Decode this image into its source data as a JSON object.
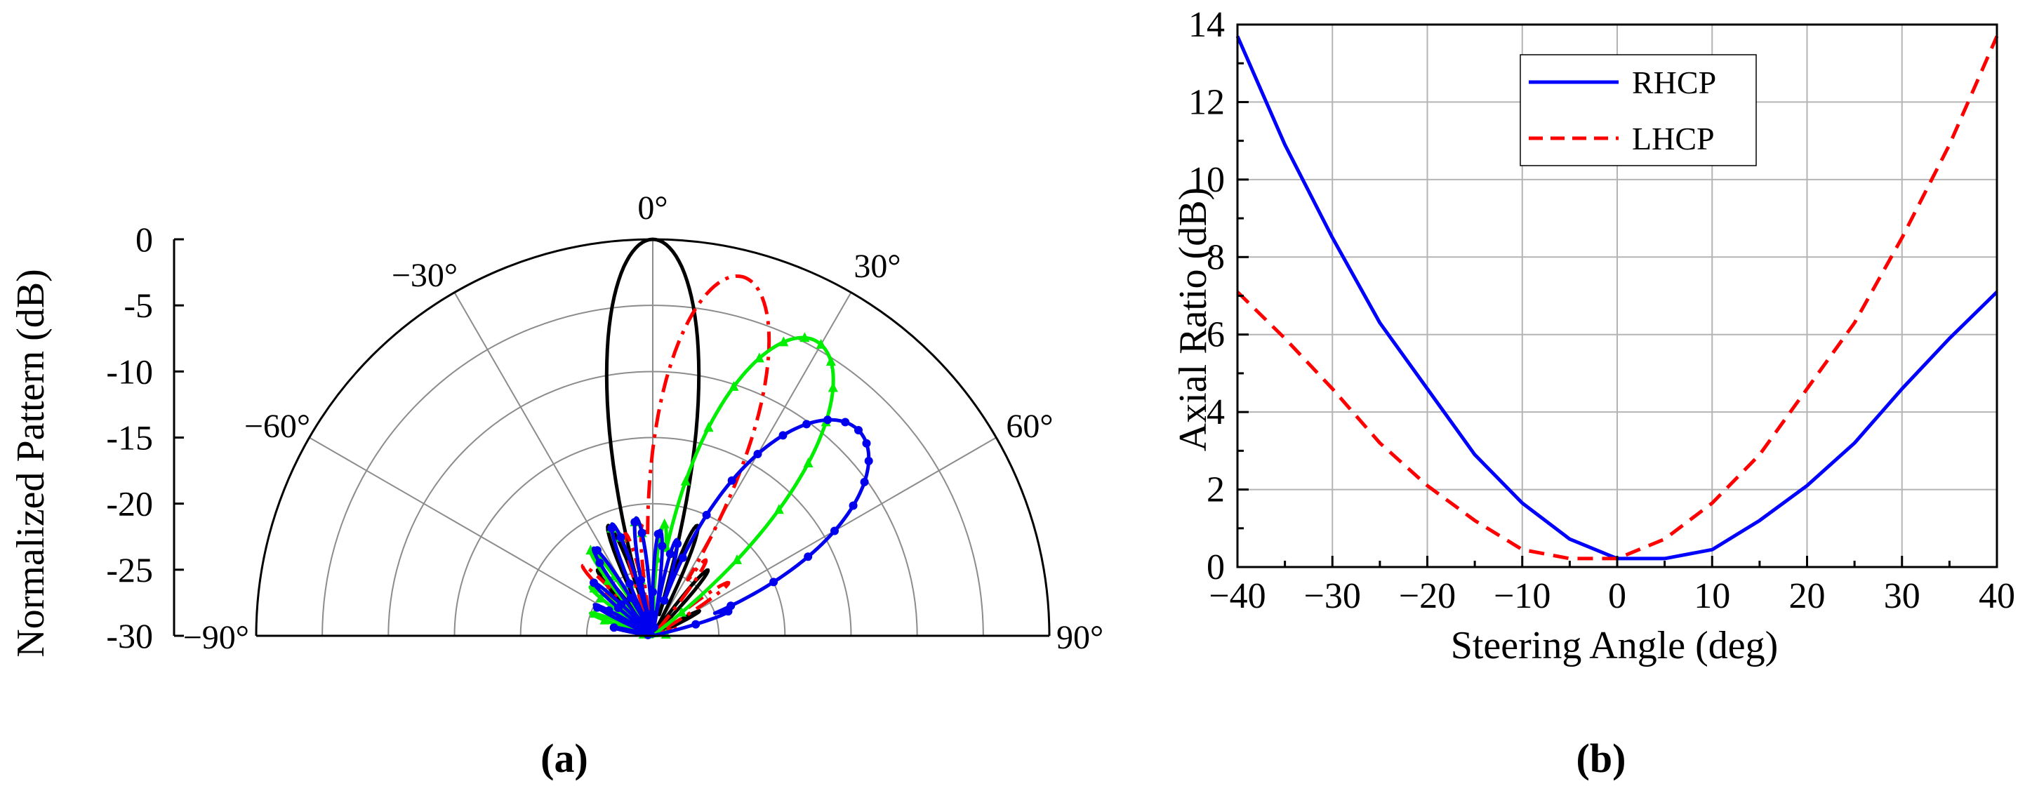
{
  "panels": {
    "a_label": "(a)",
    "b_label": "(b)"
  },
  "chart_data": [
    {
      "type": "polar",
      "ylabel": "Normalized Pattern (dB)",
      "r_ticks": [
        "0",
        "-5",
        "-10",
        "-15",
        "-20",
        "-25",
        "-30"
      ],
      "r_range": [
        -30,
        0
      ],
      "angle_range": [
        -90,
        90
      ],
      "angle_labels": [
        {
          "angle": -90,
          "text": "−90°"
        },
        {
          "angle": -60,
          "text": "−60°"
        },
        {
          "angle": -30,
          "text": "−30°"
        },
        {
          "angle": 0,
          "text": "0°"
        },
        {
          "angle": 30,
          "text": "30°"
        },
        {
          "angle": 60,
          "text": "60°"
        },
        {
          "angle": 90,
          "text": "90°"
        }
      ],
      "grid": true,
      "series": [
        {
          "color": "#000000",
          "style": "solid",
          "marker": "none",
          "main_lobe_deg": 0,
          "beamwidth_deg": 11,
          "peak_db": 0,
          "side_lobes": [
            [
              -78,
              -27
            ],
            [
              -62,
              -27
            ],
            [
              -40,
              -23.5
            ],
            [
              -22,
              -21
            ],
            [
              -10,
              -23.5
            ],
            [
              10,
              -23.5
            ],
            [
              22,
              -21
            ],
            [
              40,
              -23.5
            ],
            [
              62,
              -26
            ]
          ]
        },
        {
          "color": "#ff0000",
          "style": "dashdot",
          "marker": "none",
          "main_lobe_deg": 14,
          "beamwidth_deg": 13,
          "peak_db": -2,
          "side_lobes": [
            [
              -62,
              -25
            ],
            [
              -45,
              -22.5
            ],
            [
              -15,
              -22
            ],
            [
              -5,
              -21.5
            ],
            [
              35,
              -23
            ],
            [
              55,
              -23
            ],
            [
              72,
              -28
            ]
          ]
        },
        {
          "color": "#00ee00",
          "style": "solid",
          "marker": "triangle",
          "main_lobe_deg": 29,
          "beamwidth_deg": 16,
          "peak_db": -4.5,
          "side_lobes": [
            [
              -82,
              -29
            ],
            [
              -70,
              -25
            ],
            [
              -52,
              -24
            ],
            [
              -36,
              -22
            ],
            [
              -20,
              -21
            ],
            [
              -8,
              -21
            ],
            [
              6,
              -21.5
            ],
            [
              84,
              -29
            ]
          ]
        },
        {
          "color": "#0000ee",
          "style": "solid",
          "marker": "circle",
          "main_lobe_deg": 45,
          "beamwidth_deg": 21,
          "peak_db": -8,
          "side_lobes": [
            [
              -78,
              -27
            ],
            [
              -62,
              -25
            ],
            [
              -48,
              -24
            ],
            [
              -34,
              -22
            ],
            [
              -20,
              -21
            ],
            [
              -8,
              -21
            ],
            [
              4,
              -22
            ],
            [
              14,
              -22.5
            ],
            [
              72,
              -24
            ]
          ]
        }
      ]
    },
    {
      "type": "line",
      "xlabel": "Steering Angle (deg)",
      "ylabel": "Axial Ratio (dB)",
      "xlim": [
        -40,
        40
      ],
      "ylim": [
        0,
        14
      ],
      "x_ticks": [
        -40,
        -30,
        -20,
        -10,
        0,
        10,
        20,
        30,
        40
      ],
      "y_ticks": [
        0,
        2,
        4,
        6,
        8,
        10,
        12,
        14
      ],
      "grid": true,
      "legend": "top-center",
      "x": [
        -40,
        -35,
        -30,
        -25,
        -20,
        -15,
        -10,
        -5,
        0,
        5,
        10,
        15,
        20,
        25,
        30,
        35,
        40
      ],
      "series": [
        {
          "name": "RHCP",
          "color": "#0000ff",
          "style": "solid",
          "values": [
            13.7,
            10.9,
            8.5,
            6.3,
            4.6,
            2.9,
            1.65,
            0.72,
            0.22,
            0.22,
            0.45,
            1.2,
            2.1,
            3.2,
            4.6,
            5.9,
            7.1
          ]
        },
        {
          "name": "LHCP",
          "color": "#ff0000",
          "style": "dashed",
          "values": [
            7.1,
            5.9,
            4.6,
            3.2,
            2.1,
            1.2,
            0.45,
            0.22,
            0.22,
            0.72,
            1.65,
            2.9,
            4.6,
            6.3,
            8.5,
            10.9,
            13.7
          ]
        }
      ]
    }
  ]
}
